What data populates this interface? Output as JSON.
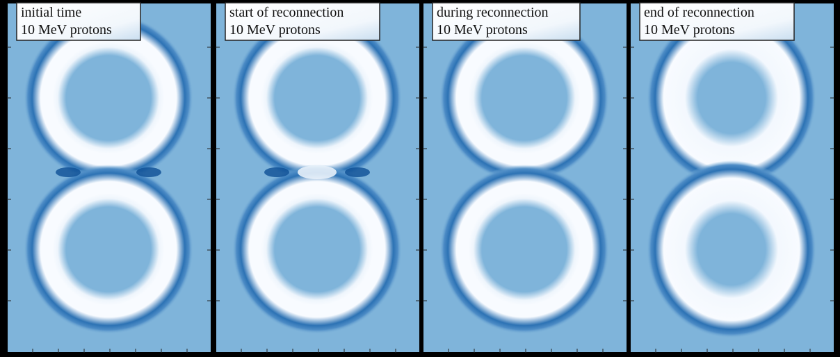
{
  "panels": [
    {
      "title": "initial time",
      "subtitle": "10 MeV protons"
    },
    {
      "title": "start of reconnection",
      "subtitle": "10 MeV protons"
    },
    {
      "title": "during reconnection",
      "subtitle": "10 MeV protons"
    },
    {
      "title": "end of reconnection",
      "subtitle": "10 MeV protons"
    }
  ]
}
